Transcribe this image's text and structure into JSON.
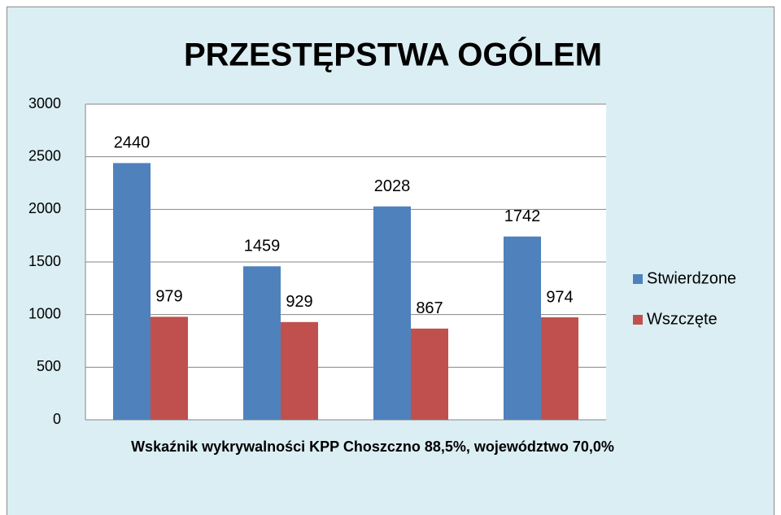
{
  "chart_data": {
    "type": "bar",
    "title": "PRZESTĘPSTWA OGÓLEM",
    "x_label": "Wskaźnik wykrywalności KPP Choszczno 88,5%, województwo 70,0%",
    "categories": [
      null,
      null,
      null,
      null
    ],
    "series": [
      {
        "name": "Stwierdzone",
        "color": "#4f81bd",
        "values": [
          2440,
          1459,
          2028,
          1742
        ]
      },
      {
        "name": "Wszczęte",
        "color": "#c0504d",
        "values": [
          979,
          929,
          867,
          974
        ]
      }
    ],
    "ylim": [
      0,
      3000
    ],
    "yticks": [
      0,
      500,
      1000,
      1500,
      2000,
      2500,
      3000
    ],
    "grid": true,
    "legend": "right"
  }
}
